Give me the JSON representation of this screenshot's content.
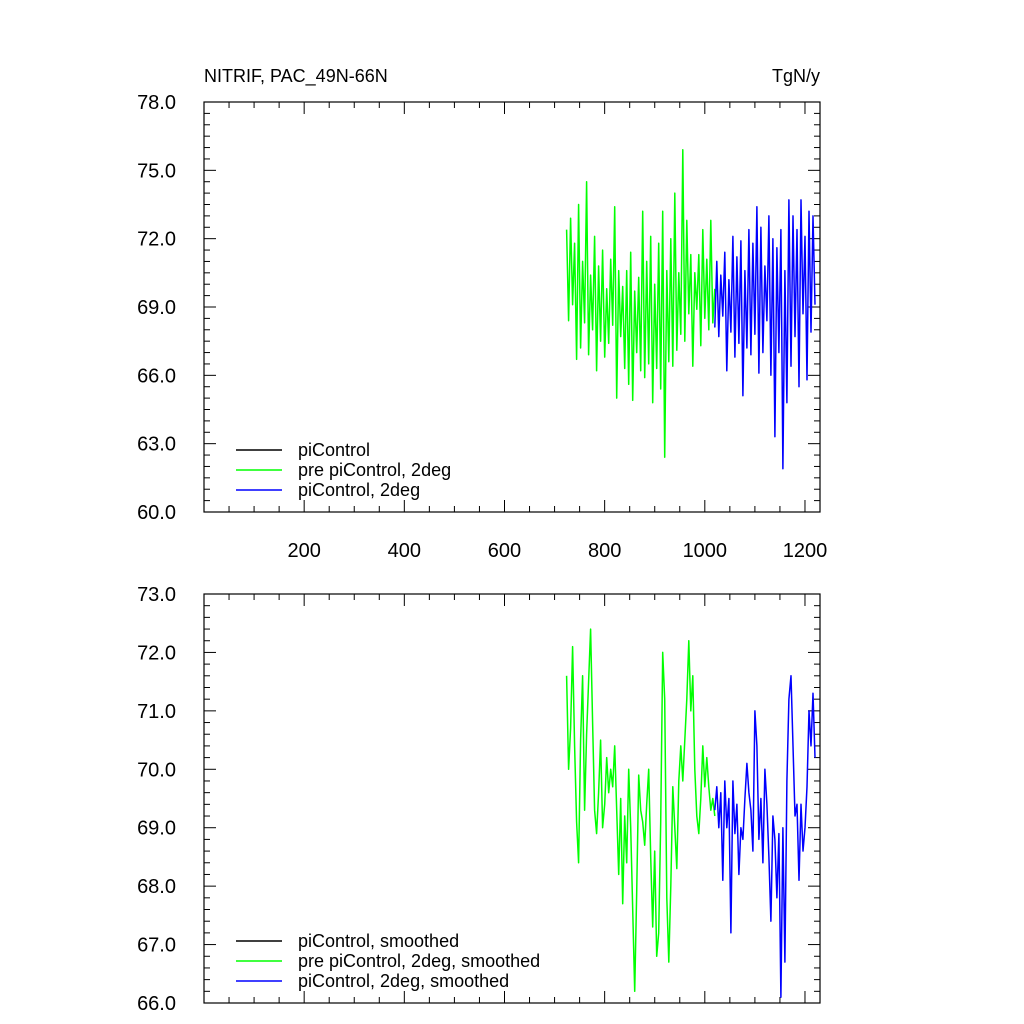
{
  "figure": {
    "title_left": "NITRIF, PAC_49N-66N",
    "title_right": "TgN/y"
  },
  "colors": {
    "piControl": "#000000",
    "pre_piControl_2deg": "#00ff00",
    "piControl_2deg": "#0000ff",
    "axes": "#000000",
    "background": "#ffffff"
  },
  "chart_data": [
    {
      "type": "line",
      "title": "NITRIF, PAC_49N-66N",
      "units": "TgN/y",
      "xlim": [
        0,
        1230
      ],
      "ylim": [
        60,
        78
      ],
      "xticks": [
        200,
        400,
        600,
        800,
        1000,
        1200
      ],
      "xtick_labels": [
        "200",
        "400",
        "600",
        "800",
        "1000",
        "1200"
      ],
      "yticks": [
        60,
        63,
        66,
        69,
        72,
        75,
        78
      ],
      "ytick_labels": [
        "60.0",
        "63.0",
        "66.0",
        "69.0",
        "72.0",
        "75.0",
        "78.0"
      ],
      "grid": false,
      "legend": "bottom-left",
      "legend_entries": [
        "piControl",
        "pre piControl, 2deg",
        "piControl, 2deg"
      ],
      "series": [
        {
          "name": "piControl",
          "x": [],
          "y": []
        },
        {
          "name": "pre piControl, 2deg",
          "x": [
            724,
            728,
            732,
            736,
            740,
            744,
            748,
            752,
            756,
            760,
            764,
            768,
            772,
            776,
            780,
            784,
            788,
            792,
            796,
            800,
            804,
            808,
            812,
            816,
            820,
            824,
            828,
            832,
            836,
            840,
            844,
            848,
            852,
            856,
            860,
            864,
            868,
            872,
            876,
            880,
            884,
            888,
            892,
            896,
            900,
            904,
            908,
            912,
            916,
            920,
            924,
            928,
            932,
            936,
            940,
            944,
            948,
            952,
            956,
            960,
            964,
            968,
            972,
            976,
            980,
            984,
            988,
            992,
            996,
            1000,
            1004,
            1008,
            1012,
            1016,
            1020
          ],
          "y": [
            72.4,
            68.4,
            72.9,
            69.1,
            71.8,
            66.7,
            73.5,
            67.2,
            71.0,
            68.3,
            74.5,
            66.9,
            70.4,
            68.0,
            72.1,
            66.2,
            70.8,
            67.5,
            71.5,
            66.8,
            69.8,
            67.4,
            71.1,
            68.2,
            73.4,
            65.0,
            70.6,
            67.7,
            69.9,
            66.3,
            70.6,
            65.6,
            71.4,
            64.9,
            69.7,
            67.0,
            70.3,
            66.2,
            73.2,
            65.9,
            71.0,
            66.5,
            72.1,
            64.8,
            70.0,
            66.3,
            71.8,
            65.4,
            73.2,
            62.4,
            70.6,
            66.6,
            72.0,
            66.4,
            74.0,
            67.1,
            70.5,
            67.8,
            75.9,
            67.5,
            72.8,
            68.7,
            71.3,
            66.4,
            70.5,
            68.9,
            71.3,
            67.3,
            72.4,
            68.5,
            71.1,
            68.0,
            72.8,
            68.3,
            69.8
          ]
        },
        {
          "name": "piControl, 2deg",
          "x": [
            1020,
            1024,
            1028,
            1032,
            1036,
            1040,
            1044,
            1048,
            1052,
            1056,
            1060,
            1064,
            1068,
            1072,
            1076,
            1080,
            1084,
            1088,
            1092,
            1096,
            1100,
            1104,
            1108,
            1112,
            1116,
            1120,
            1124,
            1128,
            1132,
            1136,
            1140,
            1144,
            1148,
            1152,
            1156,
            1160,
            1164,
            1168,
            1172,
            1176,
            1180,
            1184,
            1188,
            1192,
            1196,
            1200,
            1204,
            1208,
            1212,
            1216,
            1220
          ],
          "y": [
            68.1,
            71.0,
            67.7,
            70.4,
            68.6,
            71.4,
            66.2,
            70.2,
            67.9,
            72.1,
            66.8,
            71.2,
            67.4,
            71.9,
            65.1,
            70.6,
            67.2,
            72.4,
            66.9,
            71.8,
            67.8,
            73.4,
            66.1,
            72.5,
            67.0,
            70.8,
            68.4,
            73.0,
            66.0,
            72.0,
            63.3,
            71.6,
            67.0,
            72.4,
            61.9,
            70.6,
            64.8,
            73.7,
            66.4,
            73.0,
            67.7,
            72.4,
            65.5,
            73.7,
            68.7,
            72.1,
            65.8,
            73.2,
            67.9,
            73.0,
            69.1
          ]
        }
      ]
    },
    {
      "type": "line",
      "xlim": [
        0,
        1230
      ],
      "ylim": [
        66,
        73
      ],
      "xticks": [
        200,
        400,
        600,
        800,
        1000,
        1200
      ],
      "yticks": [
        66,
        67,
        68,
        69,
        70,
        71,
        72,
        73
      ],
      "ytick_labels": [
        "66.0",
        "67.0",
        "68.0",
        "69.0",
        "70.0",
        "71.0",
        "72.0",
        "73.0"
      ],
      "grid": false,
      "legend": "bottom-left",
      "legend_entries": [
        "piControl, smoothed",
        "pre piControl, 2deg, smoothed",
        "piControl, 2deg, smoothed"
      ],
      "series": [
        {
          "name": "piControl, smoothed",
          "x": [],
          "y": []
        },
        {
          "name": "pre piControl, 2deg, smoothed",
          "x": [
            724,
            728,
            732,
            736,
            740,
            744,
            748,
            752,
            756,
            760,
            764,
            768,
            772,
            776,
            780,
            784,
            788,
            792,
            796,
            800,
            804,
            808,
            812,
            816,
            820,
            824,
            828,
            832,
            836,
            840,
            844,
            848,
            852,
            856,
            860,
            864,
            868,
            872,
            876,
            880,
            884,
            888,
            892,
            896,
            900,
            904,
            908,
            912,
            916,
            920,
            924,
            928,
            932,
            936,
            940,
            944,
            948,
            952,
            956,
            960,
            964,
            968,
            972,
            976,
            980,
            984,
            988,
            992,
            996,
            1000,
            1004,
            1008,
            1012,
            1016,
            1020
          ],
          "y": [
            71.6,
            70.0,
            70.7,
            72.1,
            70.4,
            69.1,
            68.4,
            70.5,
            71.6,
            69.3,
            70.6,
            71.5,
            72.4,
            70.8,
            69.3,
            68.9,
            69.6,
            70.5,
            69.0,
            69.4,
            70.2,
            69.6,
            70.0,
            69.7,
            70.4,
            69.3,
            68.2,
            69.5,
            67.7,
            69.2,
            68.4,
            70.0,
            69.0,
            67.6,
            66.2,
            67.9,
            69.9,
            69.3,
            69.1,
            68.7,
            69.4,
            70.0,
            68.5,
            67.3,
            68.6,
            66.8,
            67.2,
            69.1,
            72.0,
            71.2,
            67.8,
            66.7,
            68.0,
            69.7,
            69.0,
            68.3,
            69.8,
            70.4,
            69.8,
            70.5,
            71.2,
            72.2,
            71.0,
            71.6,
            70.0,
            69.2,
            68.9,
            69.5,
            70.4,
            69.7,
            70.2,
            69.7,
            69.3,
            69.5,
            69.2
          ]
        },
        {
          "name": "piControl, 2deg, smoothed",
          "x": [
            1020,
            1024,
            1028,
            1032,
            1036,
            1040,
            1044,
            1048,
            1052,
            1056,
            1060,
            1064,
            1068,
            1072,
            1076,
            1080,
            1084,
            1088,
            1092,
            1096,
            1100,
            1104,
            1108,
            1112,
            1116,
            1120,
            1124,
            1128,
            1132,
            1136,
            1140,
            1144,
            1148,
            1152,
            1156,
            1160,
            1164,
            1168,
            1172,
            1176,
            1180,
            1184,
            1188,
            1192,
            1196,
            1200,
            1204,
            1208,
            1212,
            1216,
            1220
          ],
          "y": [
            69.3,
            69.7,
            69.0,
            69.6,
            68.1,
            69.8,
            69.0,
            69.5,
            67.2,
            69.8,
            68.9,
            69.4,
            68.2,
            69.0,
            68.8,
            69.5,
            70.1,
            69.6,
            69.3,
            68.6,
            71.0,
            70.4,
            68.8,
            69.5,
            68.4,
            70.0,
            69.4,
            68.5,
            67.4,
            69.2,
            68.8,
            67.8,
            68.9,
            66.1,
            69.0,
            66.7,
            69.8,
            71.2,
            71.6,
            70.4,
            69.2,
            69.4,
            68.1,
            69.4,
            68.6,
            69.0,
            69.7,
            71.0,
            70.4,
            71.3,
            70.2
          ]
        }
      ]
    }
  ]
}
